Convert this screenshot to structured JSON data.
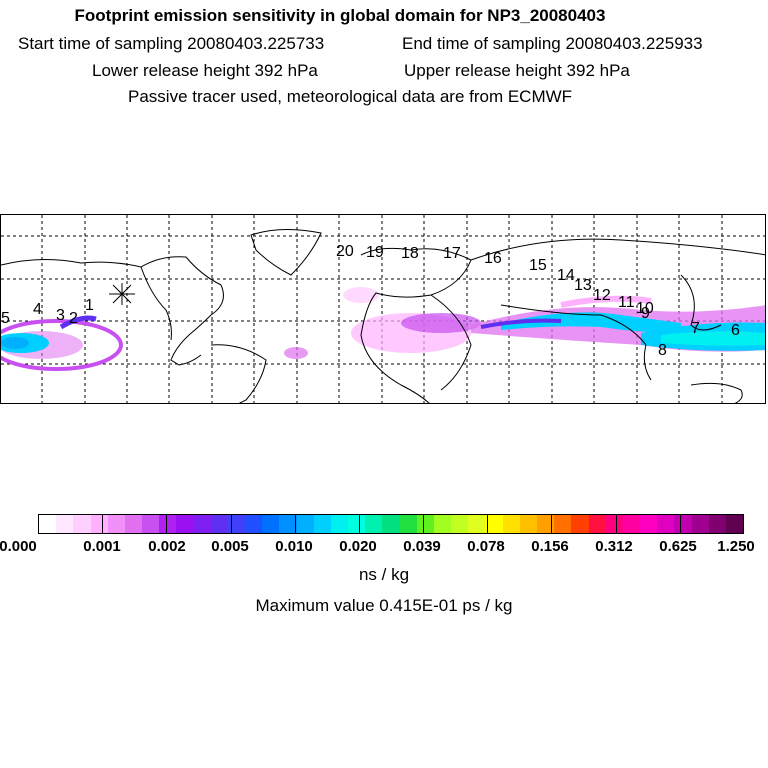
{
  "header": {
    "title": "Footprint emission sensitivity in global domain for NP3_20080403",
    "start_time": "Start time of sampling 20080403.225733",
    "end_time": "End time of sampling 20080403.225933",
    "lower_height": "Lower release height  392 hPa",
    "upper_height": "Upper release height  392 hPa",
    "tracer_note": "Passive tracer used, meteorological data are from ECMWF"
  },
  "map": {
    "track_labels": [
      "20",
      "19",
      "18",
      "17",
      "16",
      "15",
      "14",
      "13",
      "12",
      "11",
      "10",
      "9",
      "8",
      "7",
      "6",
      "5",
      "4",
      "3",
      "2",
      "1"
    ],
    "release_marker": "release-site-star"
  },
  "colorbar": {
    "tick_labels": [
      "0.000",
      "0.001",
      "0.002",
      "0.005",
      "0.010",
      "0.020",
      "0.039",
      "0.078",
      "0.156",
      "0.312",
      "0.625",
      "1.250"
    ],
    "colors": [
      "#ffffff",
      "#ffe8ff",
      "#ffd0ff",
      "#ffb0ff",
      "#f090f8",
      "#e070f0",
      "#c850f0",
      "#b020f0",
      "#9a10f0",
      "#8020f0",
      "#6030f0",
      "#4040f8",
      "#2050ff",
      "#0070ff",
      "#0090ff",
      "#00b0ff",
      "#00d0ff",
      "#00f0f0",
      "#00ffe0",
      "#00f0b0",
      "#00e080",
      "#20e040",
      "#60f020",
      "#a0ff20",
      "#c0ff20",
      "#e0ff20",
      "#ffff00",
      "#ffe000",
      "#ffc000",
      "#ffa000",
      "#ff7000",
      "#ff4000",
      "#ff1040",
      "#ff0080",
      "#ff00a0",
      "#ff00c0",
      "#e000c0",
      "#c000b0",
      "#a00090",
      "#800070",
      "#600050"
    ],
    "units": "ns / kg",
    "max_value": "Maximum value  0.415E-01 ps / kg"
  }
}
